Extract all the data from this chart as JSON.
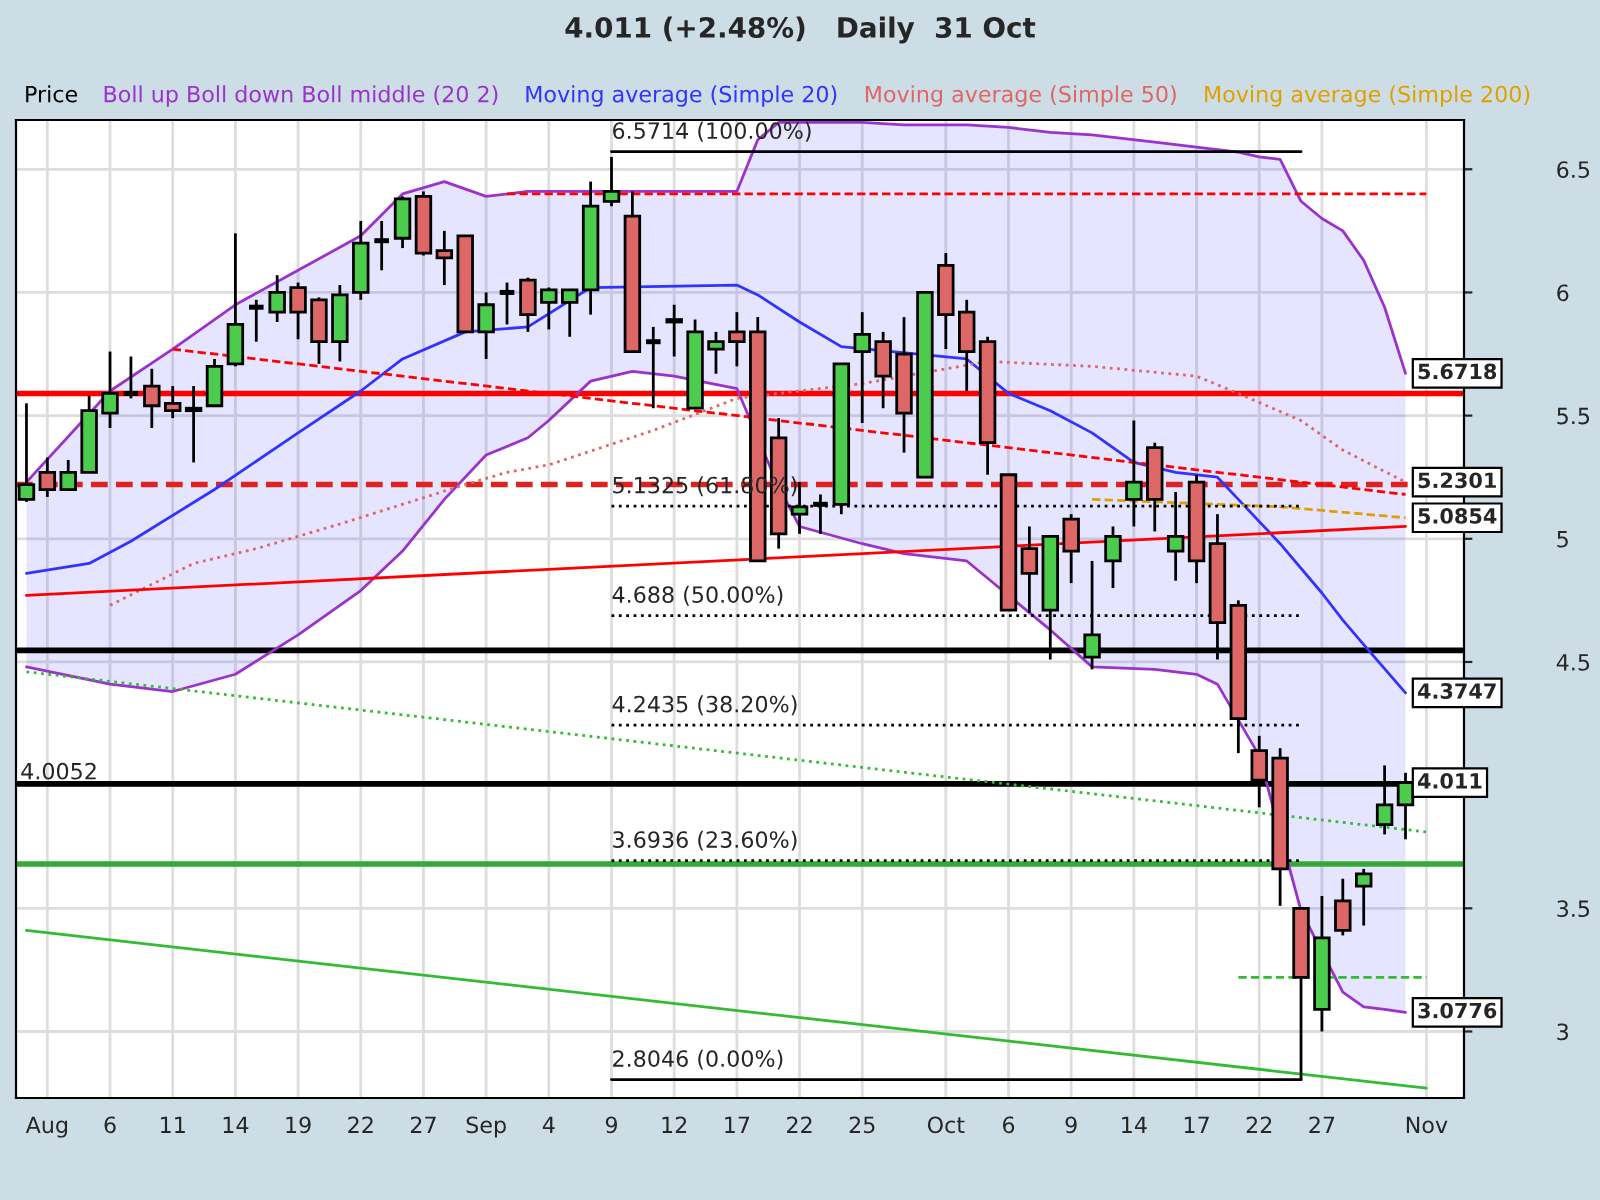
{
  "chart_data": {
    "type": "candlestick",
    "title": "4.011 (+2.48%)   Daily  31 Oct",
    "legend_title": "Price",
    "legend": "top",
    "grid": true,
    "categories": [
      null,
      "Aug",
      null,
      null,
      "6",
      null,
      null,
      "11",
      null,
      null,
      "14",
      null,
      null,
      "19",
      null,
      null,
      "22",
      null,
      null,
      "27",
      null,
      null,
      "Sep",
      null,
      null,
      "4",
      null,
      null,
      "9",
      null,
      null,
      "12",
      null,
      null,
      "17",
      null,
      null,
      "22",
      null,
      null,
      "25",
      null,
      null,
      null,
      "Oct",
      null,
      null,
      "6",
      null,
      null,
      "9",
      null,
      null,
      "14",
      null,
      null,
      "17",
      null,
      null,
      "22",
      null,
      null,
      "27",
      null,
      null,
      null,
      null,
      "Nov"
    ],
    "ohlc": [
      [
        5.16,
        5.55,
        5.15,
        5.22
      ],
      [
        5.27,
        5.33,
        5.17,
        5.2
      ],
      [
        5.2,
        5.32,
        5.2,
        5.27
      ],
      [
        5.27,
        5.58,
        5.27,
        5.52
      ],
      [
        5.51,
        5.76,
        5.45,
        5.59
      ],
      [
        5.59,
        5.74,
        5.57,
        5.59
      ],
      [
        5.62,
        5.69,
        5.45,
        5.54
      ],
      [
        5.55,
        5.62,
        5.49,
        5.52
      ],
      [
        5.52,
        5.62,
        5.31,
        5.53
      ],
      [
        5.54,
        5.73,
        5.54,
        5.7
      ],
      [
        5.71,
        6.24,
        5.7,
        5.87
      ],
      [
        5.94,
        5.97,
        5.8,
        5.94
      ],
      [
        5.92,
        6.07,
        5.88,
        6.0
      ],
      [
        6.02,
        6.04,
        5.81,
        5.92
      ],
      [
        5.97,
        5.98,
        5.71,
        5.8
      ],
      [
        5.8,
        6.03,
        5.72,
        5.99
      ],
      [
        6.0,
        6.29,
        5.97,
        6.2
      ],
      [
        6.21,
        6.29,
        6.09,
        6.21
      ],
      [
        6.22,
        6.39,
        6.18,
        6.38
      ],
      [
        6.39,
        6.41,
        6.15,
        6.16
      ],
      [
        6.17,
        6.25,
        6.03,
        6.14
      ],
      [
        6.23,
        6.23,
        5.84,
        5.84
      ],
      [
        5.84,
        6.0,
        5.73,
        5.95
      ],
      [
        6.0,
        6.04,
        5.87,
        6.0
      ],
      [
        6.05,
        6.06,
        5.84,
        5.91
      ],
      [
        5.96,
        6.02,
        5.85,
        6.01
      ],
      [
        5.96,
        6.01,
        5.82,
        6.01
      ],
      [
        6.01,
        6.45,
        5.91,
        6.35
      ],
      [
        6.37,
        6.55,
        6.35,
        6.41
      ],
      [
        6.31,
        6.41,
        5.76,
        5.76
      ],
      [
        5.8,
        5.86,
        5.53,
        5.8
      ],
      [
        5.89,
        5.95,
        5.74,
        5.88
      ],
      [
        5.53,
        5.89,
        5.53,
        5.84
      ],
      [
        5.77,
        5.84,
        5.67,
        5.8
      ],
      [
        5.84,
        5.92,
        5.7,
        5.8
      ],
      [
        5.84,
        5.9,
        4.91,
        4.91
      ],
      [
        5.41,
        5.49,
        4.96,
        5.02
      ],
      [
        5.1,
        5.23,
        5.02,
        5.13
      ],
      [
        5.14,
        5.18,
        5.02,
        5.14
      ],
      [
        5.14,
        5.71,
        5.1,
        5.71
      ],
      [
        5.76,
        5.92,
        5.47,
        5.83
      ],
      [
        5.8,
        5.84,
        5.53,
        5.66
      ],
      [
        5.75,
        5.9,
        5.35,
        5.51
      ],
      [
        5.25,
        6.0,
        5.25,
        6.0
      ],
      [
        6.11,
        6.16,
        5.77,
        5.91
      ],
      [
        5.92,
        5.97,
        5.6,
        5.76
      ],
      [
        5.8,
        5.82,
        5.26,
        5.39
      ],
      [
        5.26,
        5.26,
        4.71,
        4.71
      ],
      [
        4.96,
        5.05,
        4.7,
        4.86
      ],
      [
        4.71,
        5.01,
        4.51,
        5.01
      ],
      [
        5.08,
        5.1,
        4.82,
        4.95
      ],
      [
        4.52,
        4.91,
        4.47,
        4.61
      ],
      [
        4.91,
        5.05,
        4.8,
        5.01
      ],
      [
        5.16,
        5.48,
        5.05,
        5.23
      ],
      [
        5.37,
        5.39,
        5.03,
        5.16
      ],
      [
        4.95,
        5.19,
        4.83,
        5.01
      ],
      [
        5.23,
        5.26,
        4.82,
        4.91
      ],
      [
        4.98,
        5.1,
        4.51,
        4.66
      ],
      [
        4.73,
        4.75,
        4.13,
        4.27
      ],
      [
        4.14,
        4.2,
        3.91,
        4.02
      ],
      [
        4.11,
        4.15,
        3.51,
        3.66
      ],
      [
        3.5,
        3.5,
        2.8,
        3.22
      ],
      [
        3.09,
        3.55,
        3.0,
        3.38
      ],
      [
        3.53,
        3.62,
        3.39,
        3.41
      ],
      [
        3.59,
        3.66,
        3.43,
        3.64
      ],
      [
        3.84,
        4.08,
        3.8,
        3.92
      ],
      [
        3.92,
        4.05,
        3.78,
        4.01
      ],
      null
    ],
    "value_labels": [
      null,
      null,
      null,
      null,
      null,
      null,
      null,
      null,
      null,
      null,
      null,
      null,
      null,
      null,
      null,
      null,
      null,
      null,
      null,
      null,
      null,
      null,
      null,
      null,
      null,
      null,
      null,
      null,
      null,
      null,
      null,
      null,
      null,
      null,
      null,
      null,
      null,
      null,
      null,
      null,
      null,
      null,
      null,
      null,
      null,
      null,
      null,
      null,
      null,
      null,
      null,
      null,
      null,
      null,
      null,
      null,
      null,
      null,
      null,
      null,
      null,
      null,
      null,
      null,
      null,
      null,
      "4.011",
      null
    ],
    "colors": [
      "#4ccc4c",
      "#dd6666",
      "#4ccc4c",
      "#4ccc4c",
      "#4ccc4c",
      "#000000",
      "#dd6666",
      "#dd6666",
      "#4ccc4c",
      "#4ccc4c",
      "#4ccc4c",
      "#000000",
      "#4ccc4c",
      "#dd6666",
      "#dd6666",
      "#4ccc4c",
      "#4ccc4c",
      "#000000",
      "#4ccc4c",
      "#dd6666",
      "#dd6666",
      "#dd6666",
      "#4ccc4c",
      "#000000",
      "#dd6666",
      "#4ccc4c",
      "#4ccc4c",
      "#4ccc4c",
      "#4ccc4c",
      "#dd6666",
      "#000000",
      "#dd6666",
      "#4ccc4c",
      "#4ccc4c",
      "#dd6666",
      "#dd6666",
      "#dd6666",
      "#4ccc4c",
      "#000000",
      "#4ccc4c",
      "#4ccc4c",
      "#dd6666",
      "#dd6666",
      "#4ccc4c",
      "#dd6666",
      "#dd6666",
      "#dd6666",
      "#dd6666",
      "#dd6666",
      "#4ccc4c",
      "#dd6666",
      "#4ccc4c",
      "#4ccc4c",
      "#4ccc4c",
      "#dd6666",
      "#4ccc4c",
      "#dd6666",
      "#dd6666",
      "#dd6666",
      "#dd6666",
      "#dd6666",
      "#dd6666",
      "#4ccc4c",
      "#dd6666",
      "#4ccc4c",
      "#4ccc4c",
      "#4ccc4c",
      null
    ],
    "ylim": [
      2.73,
      6.7
    ],
    "yticks": [
      3,
      3.5,
      {
        "value": 4,
        "label": null
      },
      4.5,
      5,
      5.5,
      6,
      6.5
    ],
    "series": [
      {
        "type": "line",
        "name": "Boll up Boll down Boll middle (20 2)",
        "color": "#9933cc",
        "value_labels": [
          null,
          null,
          null,
          null,
          null,
          null,
          null,
          null,
          null,
          null,
          null,
          null,
          null,
          null,
          null,
          null,
          null,
          null,
          null,
          null,
          null,
          null,
          null,
          null,
          null,
          null,
          null,
          null,
          null,
          null,
          null,
          null,
          null,
          null,
          null,
          null,
          null,
          null,
          null,
          null,
          null,
          null,
          null,
          null,
          null,
          null,
          null,
          null,
          null,
          null,
          null,
          null,
          null,
          null,
          null,
          null,
          null,
          null,
          null,
          null,
          null,
          null,
          null,
          null,
          null,
          null,
          "5.6718",
          null
        ],
        "values": [
          5.23,
          null,
          null,
          null,
          5.6,
          null,
          null,
          5.77,
          null,
          null,
          5.95,
          null,
          null,
          6.09,
          null,
          null,
          6.23,
          null,
          6.4,
          null,
          6.45,
          null,
          6.39,
          null,
          6.41,
          6.41,
          null,
          6.41,
          null,
          6.41,
          null,
          6.41,
          null,
          null,
          6.41,
          6.62,
          6.69,
          6.69,
          null,
          null,
          6.69,
          null,
          6.68,
          null,
          null,
          6.68,
          null,
          6.67,
          null,
          6.65,
          null,
          6.64,
          null,
          null,
          6.61,
          null,
          6.59,
          6.58,
          6.57,
          6.55,
          6.54,
          6.37,
          6.3,
          6.25,
          6.13,
          5.94,
          5.6718,
          null
        ]
      },
      {
        "type": "line",
        "color": "#9933cc",
        "value_labels": [
          null,
          null,
          null,
          null,
          null,
          null,
          null,
          null,
          null,
          null,
          null,
          null,
          null,
          null,
          null,
          null,
          null,
          null,
          null,
          null,
          null,
          null,
          null,
          null,
          null,
          null,
          null,
          null,
          null,
          null,
          null,
          null,
          null,
          null,
          null,
          null,
          null,
          null,
          null,
          null,
          null,
          null,
          null,
          null,
          null,
          null,
          null,
          null,
          null,
          null,
          null,
          null,
          null,
          null,
          null,
          null,
          null,
          null,
          null,
          null,
          null,
          null,
          null,
          null,
          null,
          null,
          "3.0776",
          null
        ],
        "values": [
          4.48,
          null,
          null,
          null,
          4.41,
          null,
          null,
          4.38,
          null,
          null,
          4.45,
          null,
          null,
          4.61,
          null,
          null,
          4.79,
          null,
          4.95,
          null,
          5.16,
          null,
          5.34,
          null,
          5.41,
          5.48,
          null,
          5.64,
          null,
          5.68,
          null,
          5.66,
          null,
          null,
          5.61,
          null,
          5.21,
          5.05,
          null,
          null,
          4.98,
          null,
          4.94,
          null,
          null,
          4.91,
          null,
          null,
          null,
          4.63,
          null,
          4.48,
          null,
          null,
          4.47,
          null,
          4.45,
          4.41,
          null,
          4.12,
          null,
          3.49,
          null,
          3.16,
          3.1,
          3.09,
          3.0776,
          null
        ]
      },
      {
        "type": "line",
        "name": "Moving average (Simple 20)",
        "color": "#3333ff",
        "value_labels": [
          null,
          null,
          null,
          null,
          null,
          null,
          null,
          null,
          null,
          null,
          null,
          null,
          null,
          null,
          null,
          null,
          null,
          null,
          null,
          null,
          null,
          null,
          null,
          null,
          null,
          null,
          null,
          null,
          null,
          null,
          null,
          null,
          null,
          null,
          null,
          null,
          null,
          null,
          null,
          null,
          null,
          null,
          null,
          null,
          null,
          null,
          null,
          null,
          null,
          null,
          null,
          null,
          null,
          null,
          null,
          null,
          null,
          null,
          null,
          null,
          null,
          null,
          null,
          null,
          null,
          null,
          "4.3747",
          null
        ],
        "upper": [
          5.23,
          null,
          null,
          null,
          5.6,
          null,
          null,
          5.77,
          null,
          null,
          5.95,
          null,
          null,
          6.09,
          null,
          null,
          6.23,
          null,
          6.4,
          null,
          6.45,
          null,
          6.39,
          null,
          6.41,
          6.41,
          null,
          6.41,
          null,
          6.41,
          null,
          6.41,
          null,
          null,
          6.41,
          6.62,
          6.69,
          6.69,
          null,
          null,
          6.69,
          null,
          6.68,
          null,
          null,
          6.68,
          null,
          6.67,
          null,
          6.65,
          null,
          6.64,
          null,
          null,
          6.61,
          null,
          6.59,
          6.58,
          6.57,
          6.55,
          6.54,
          6.37,
          6.3,
          6.25,
          6.13,
          5.94,
          5.6718,
          null
        ],
        "lower": [
          4.48,
          null,
          null,
          null,
          4.41,
          null,
          null,
          4.38,
          null,
          null,
          4.45,
          null,
          null,
          4.61,
          null,
          null,
          4.79,
          null,
          4.95,
          null,
          5.16,
          null,
          5.34,
          null,
          5.41,
          5.48,
          null,
          5.64,
          null,
          5.68,
          null,
          5.66,
          null,
          null,
          5.61,
          5.48,
          5.21,
          5.05,
          null,
          null,
          4.98,
          null,
          4.94,
          null,
          null,
          4.91,
          null,
          4.78,
          null,
          4.63,
          null,
          4.48,
          null,
          null,
          4.47,
          null,
          4.45,
          4.41,
          4.3,
          4.12,
          3.75,
          3.49,
          3.28,
          3.16,
          3.1,
          3.09,
          3.0776,
          null
        ],
        "values": [
          4.86,
          null,
          null,
          4.9,
          null,
          4.99,
          null,
          null,
          null,
          5.2,
          null,
          null,
          null,
          5.43,
          null,
          null,
          5.6,
          null,
          5.73,
          null,
          null,
          5.84,
          null,
          null,
          5.86,
          null,
          null,
          6.02,
          null,
          null,
          null,
          null,
          null,
          null,
          6.03,
          5.99,
          null,
          5.88,
          null,
          5.78,
          null,
          null,
          null,
          null,
          null,
          5.73,
          null,
          5.59,
          null,
          5.52,
          null,
          5.43,
          null,
          5.31,
          null,
          5.27,
          null,
          5.25,
          5.16,
          null,
          4.98,
          null,
          4.78,
          4.67,
          4.57,
          null,
          4.3747,
          null
        ]
      },
      {
        "type": "line",
        "name": "Moving average (Simple 50)",
        "color": "#e06666",
        "line_style": "dotted",
        "value_labels": [
          null,
          null,
          null,
          null,
          null,
          null,
          null,
          null,
          null,
          null,
          null,
          null,
          null,
          null,
          null,
          null,
          null,
          null,
          null,
          null,
          null,
          null,
          null,
          null,
          null,
          null,
          null,
          null,
          null,
          null,
          null,
          null,
          null,
          null,
          null,
          null,
          null,
          null,
          null,
          null,
          null,
          null,
          null,
          null,
          null,
          null,
          null,
          null,
          null,
          null,
          null,
          null,
          null,
          null,
          null,
          null,
          null,
          null,
          null,
          null,
          null,
          null,
          null,
          null,
          null,
          null,
          "5.2301",
          null
        ],
        "values": [
          null,
          null,
          null,
          null,
          4.73,
          null,
          null,
          null,
          4.9,
          null,
          null,
          4.96,
          null,
          null,
          null,
          5.06,
          null,
          null,
          5.14,
          null,
          null,
          5.22,
          null,
          5.27,
          null,
          5.3,
          null,
          null,
          null,
          null,
          5.44,
          null,
          null,
          null,
          5.57,
          null,
          null,
          null,
          null,
          null,
          5.63,
          null,
          null,
          null,
          null,
          null,
          5.72,
          null,
          null,
          null,
          null,
          5.7,
          null,
          null,
          null,
          null,
          5.66,
          null,
          5.59,
          null,
          null,
          5.48,
          null,
          5.36,
          null,
          null,
          5.2301,
          null
        ]
      },
      {
        "type": "line",
        "name": "Moving average (Simple 200)",
        "color": "#e0a000",
        "line_style": "dashed",
        "value_labels": [
          null,
          null,
          null,
          null,
          null,
          null,
          null,
          null,
          null,
          null,
          null,
          null,
          null,
          null,
          null,
          null,
          null,
          null,
          null,
          null,
          null,
          null,
          null,
          null,
          null,
          null,
          null,
          null,
          null,
          null,
          null,
          null,
          null,
          null,
          null,
          null,
          null,
          null,
          null,
          null,
          null,
          null,
          null,
          null,
          null,
          null,
          null,
          null,
          null,
          null,
          null,
          null,
          null,
          null,
          null,
          null,
          null,
          null,
          null,
          null,
          null,
          null,
          null,
          null,
          null,
          null,
          "5.0854",
          null
        ],
        "values": [
          null,
          null,
          null,
          null,
          null,
          null,
          null,
          null,
          null,
          null,
          null,
          null,
          null,
          null,
          null,
          null,
          null,
          null,
          null,
          null,
          null,
          null,
          null,
          null,
          null,
          null,
          null,
          null,
          null,
          null,
          null,
          null,
          null,
          null,
          null,
          null,
          null,
          null,
          null,
          null,
          null,
          null,
          null,
          null,
          null,
          null,
          null,
          null,
          null,
          null,
          null,
          5.16,
          null,
          null,
          null,
          null,
          null,
          null,
          null,
          null,
          5.13,
          null,
          null,
          null,
          null,
          null,
          5.0854,
          null
        ]
      },
      {
        "type": "line",
        "color": "#ff0000",
        "line_style": "dashed",
        "values": [
          null,
          null,
          null,
          null,
          null,
          null,
          null,
          null,
          null,
          null,
          null,
          null,
          null,
          null,
          null,
          null,
          null,
          null,
          null,
          null,
          null,
          null,
          null,
          6.4,
          null,
          null,
          null,
          null,
          null,
          null,
          null,
          null,
          null,
          null,
          null,
          null,
          null,
          null,
          null,
          null,
          null,
          null,
          null,
          null,
          null,
          null,
          null,
          null,
          null,
          null,
          null,
          null,
          null,
          null,
          null,
          null,
          null,
          null,
          null,
          null,
          null,
          null,
          null,
          null,
          null,
          null,
          null,
          6.4
        ]
      },
      {
        "type": "line",
        "color": "#ff0000",
        "line_style": "dashed",
        "values": [
          null,
          null,
          null,
          null,
          null,
          null,
          null,
          5.77,
          null,
          null,
          null,
          null,
          null,
          null,
          null,
          null,
          null,
          null,
          null,
          null,
          null,
          null,
          null,
          null,
          null,
          null,
          null,
          null,
          null,
          null,
          null,
          null,
          null,
          null,
          null,
          null,
          null,
          null,
          null,
          null,
          null,
          null,
          null,
          null,
          null,
          null,
          null,
          null,
          null,
          null,
          null,
          null,
          null,
          null,
          null,
          null,
          null,
          null,
          null,
          null,
          null,
          null,
          null,
          null,
          null,
          null,
          5.18,
          null
        ]
      },
      {
        "type": "line",
        "color": "#ff0000",
        "values": [
          4.77,
          null,
          null,
          null,
          null,
          null,
          null,
          null,
          null,
          null,
          null,
          null,
          null,
          null,
          null,
          null,
          null,
          null,
          null,
          null,
          null,
          null,
          null,
          null,
          null,
          null,
          null,
          null,
          null,
          null,
          null,
          null,
          null,
          null,
          null,
          null,
          null,
          null,
          null,
          null,
          null,
          null,
          null,
          null,
          null,
          null,
          null,
          null,
          null,
          null,
          null,
          null,
          null,
          null,
          null,
          null,
          null,
          null,
          null,
          null,
          null,
          null,
          null,
          null,
          null,
          null,
          5.05,
          null
        ]
      },
      {
        "type": "line",
        "color": "#33bb33",
        "line_style": "dotted",
        "values": [
          4.46,
          null,
          null,
          null,
          null,
          null,
          null,
          null,
          null,
          null,
          null,
          null,
          null,
          null,
          null,
          null,
          null,
          null,
          null,
          null,
          null,
          null,
          null,
          null,
          null,
          null,
          null,
          null,
          null,
          null,
          null,
          null,
          null,
          null,
          null,
          null,
          null,
          null,
          null,
          null,
          null,
          null,
          null,
          null,
          null,
          null,
          null,
          null,
          null,
          null,
          null,
          null,
          null,
          null,
          null,
          null,
          null,
          null,
          null,
          null,
          null,
          null,
          null,
          null,
          null,
          null,
          null,
          3.81
        ]
      },
      {
        "type": "line",
        "color": "#33bb33",
        "values": [
          3.41,
          null,
          null,
          null,
          null,
          null,
          null,
          null,
          null,
          null,
          null,
          null,
          null,
          null,
          null,
          null,
          null,
          null,
          null,
          null,
          null,
          null,
          null,
          null,
          null,
          null,
          null,
          null,
          null,
          null,
          null,
          null,
          null,
          null,
          null,
          null,
          null,
          null,
          null,
          null,
          null,
          null,
          null,
          null,
          null,
          null,
          null,
          null,
          null,
          null,
          null,
          null,
          null,
          null,
          null,
          null,
          null,
          null,
          null,
          null,
          null,
          null,
          null,
          null,
          null,
          null,
          null,
          2.77
        ]
      },
      {
        "type": "line",
        "color": "#33bb33",
        "line_style": "dashed",
        "values": [
          null,
          null,
          null,
          null,
          null,
          null,
          null,
          null,
          null,
          null,
          null,
          null,
          null,
          null,
          null,
          null,
          null,
          null,
          null,
          null,
          null,
          null,
          null,
          null,
          null,
          null,
          null,
          null,
          null,
          null,
          null,
          null,
          null,
          null,
          null,
          null,
          null,
          null,
          null,
          null,
          null,
          null,
          null,
          null,
          null,
          null,
          null,
          null,
          null,
          null,
          null,
          null,
          null,
          null,
          null,
          null,
          null,
          null,
          3.22,
          null,
          null,
          null,
          null,
          null,
          null,
          null,
          null,
          3.22
        ]
      },
      {
        "type": "line",
        "color": "#000000",
        "values": [
          null,
          null,
          null,
          null,
          null,
          null,
          null,
          null,
          null,
          null,
          null,
          null,
          null,
          null,
          null,
          null,
          null,
          null,
          null,
          null,
          null,
          null,
          null,
          null,
          null,
          null,
          null,
          null,
          6.5714,
          null,
          null,
          null,
          null,
          null,
          null,
          null,
          null,
          null,
          null,
          null,
          null,
          null,
          null,
          null,
          null,
          null,
          null,
          null,
          null,
          null,
          null,
          null,
          null,
          null,
          null,
          null,
          null,
          null,
          null,
          null,
          null,
          6.5714,
          null,
          null,
          null,
          null,
          null,
          null
        ]
      },
      {
        "type": "line",
        "color": "#000000",
        "line_style": "dotted",
        "values": [
          null,
          null,
          null,
          null,
          null,
          null,
          null,
          null,
          null,
          null,
          null,
          null,
          null,
          null,
          null,
          null,
          null,
          null,
          null,
          null,
          null,
          null,
          null,
          null,
          null,
          null,
          null,
          null,
          5.1325,
          null,
          null,
          null,
          null,
          null,
          null,
          null,
          null,
          null,
          null,
          null,
          null,
          null,
          null,
          null,
          null,
          null,
          null,
          null,
          null,
          null,
          null,
          null,
          null,
          null,
          null,
          null,
          null,
          null,
          null,
          null,
          null,
          5.1325,
          null,
          null,
          null,
          null,
          null,
          null
        ]
      },
      {
        "type": "line",
        "color": "#000000",
        "line_style": "dotted",
        "values": [
          null,
          null,
          null,
          null,
          null,
          null,
          null,
          null,
          null,
          null,
          null,
          null,
          null,
          null,
          null,
          null,
          null,
          null,
          null,
          null,
          null,
          null,
          null,
          null,
          null,
          null,
          null,
          null,
          4.688,
          null,
          null,
          null,
          null,
          null,
          null,
          null,
          null,
          null,
          null,
          null,
          null,
          null,
          null,
          null,
          null,
          null,
          null,
          null,
          null,
          null,
          null,
          null,
          null,
          null,
          null,
          null,
          null,
          null,
          null,
          null,
          null,
          4.688,
          null,
          null,
          null,
          null,
          null,
          null
        ]
      },
      {
        "type": "line",
        "color": "#000000",
        "line_style": "dotted",
        "values": [
          null,
          null,
          null,
          null,
          null,
          null,
          null,
          null,
          null,
          null,
          null,
          null,
          null,
          null,
          null,
          null,
          null,
          null,
          null,
          null,
          null,
          null,
          null,
          null,
          null,
          null,
          null,
          null,
          4.2435,
          null,
          null,
          null,
          null,
          null,
          null,
          null,
          null,
          null,
          null,
          null,
          null,
          null,
          null,
          null,
          null,
          null,
          null,
          null,
          null,
          null,
          null,
          null,
          null,
          null,
          null,
          null,
          null,
          null,
          null,
          null,
          null,
          4.2435,
          null,
          null,
          null,
          null,
          null,
          null
        ]
      },
      {
        "type": "line",
        "color": "#000000",
        "line_style": "dotted",
        "values": [
          null,
          null,
          null,
          null,
          null,
          null,
          null,
          null,
          null,
          null,
          null,
          null,
          null,
          null,
          null,
          null,
          null,
          null,
          null,
          null,
          null,
          null,
          null,
          null,
          null,
          null,
          null,
          null,
          3.6936,
          null,
          null,
          null,
          null,
          null,
          null,
          null,
          null,
          null,
          null,
          null,
          null,
          null,
          null,
          null,
          null,
          null,
          null,
          null,
          null,
          null,
          null,
          null,
          null,
          null,
          null,
          null,
          null,
          null,
          null,
          null,
          null,
          3.6936,
          null,
          null,
          null,
          null,
          null,
          null
        ]
      },
      {
        "type": "line",
        "color": "#000000",
        "values": [
          null,
          null,
          null,
          null,
          null,
          null,
          null,
          null,
          null,
          null,
          null,
          null,
          null,
          null,
          null,
          null,
          null,
          null,
          null,
          null,
          null,
          null,
          null,
          null,
          null,
          null,
          null,
          null,
          2.8046,
          null,
          null,
          null,
          null,
          null,
          null,
          null,
          null,
          null,
          null,
          null,
          null,
          null,
          null,
          null,
          null,
          null,
          null,
          null,
          null,
          null,
          null,
          null,
          null,
          null,
          null,
          null,
          null,
          null,
          null,
          null,
          null,
          2.8046,
          null,
          null,
          null,
          null,
          null,
          null
        ]
      }
    ],
    "ref_lines": [
      {
        "axis": "y",
        "value": 5.59,
        "color": "#ff0000"
      },
      {
        "axis": "y",
        "value": 5.22,
        "color": "#dd2222",
        "line_style": "dashed"
      },
      {
        "axis": "y",
        "value": 4.547,
        "color": "#000000"
      },
      {
        "axis": "y",
        "value": 4.0052,
        "color": "#000000",
        "label": "4.0052"
      },
      {
        "axis": "y",
        "value": 3.68,
        "color": "#33aa33"
      }
    ],
    "annotations": [
      {
        "text": "6.5714 (100.00%)",
        "x": "9",
        "y": 6.5714
      },
      {
        "text": "5.1325 (61.80%)",
        "x": "9",
        "y": 5.1325
      },
      {
        "text": "4.688 (50.00%)",
        "x": "9",
        "y": 4.688
      },
      {
        "text": "4.2435 (38.20%)",
        "x": "9",
        "y": 4.2435
      },
      {
        "text": "3.6936 (23.60%)",
        "x": "9",
        "y": 3.6936
      },
      {
        "text": "2.8046 (0.00%)",
        "x": "9",
        "y": 2.8046
      }
    ]
  }
}
